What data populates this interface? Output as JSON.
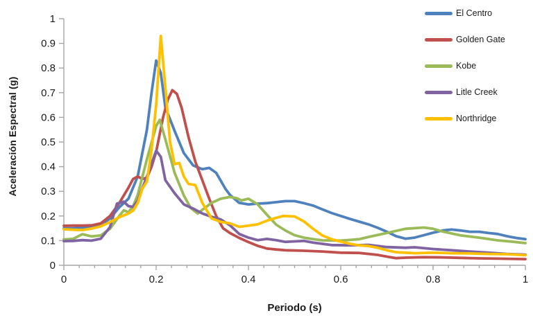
{
  "colors": {
    "axis": "#A6A6A6",
    "text": "#1A1A1A",
    "background": "#FFFFFF"
  },
  "legend": {
    "position": "top-right",
    "items": [
      "El Centro",
      "Golden Gate",
      "Kobe",
      "Litle Creek",
      "Northridge"
    ]
  },
  "chart_data": {
    "type": "line",
    "title": "",
    "xlabel": "Periodo (s)",
    "ylabel": "Aceleración  Espectral (g)",
    "xlim": [
      0,
      1
    ],
    "ylim": [
      0,
      1
    ],
    "grid": false,
    "legend_position": "top-right",
    "xticks": [
      {
        "v": 0,
        "label": "0"
      },
      {
        "v": 0.2,
        "label": "0.2"
      },
      {
        "v": 0.4,
        "label": "0.4"
      },
      {
        "v": 0.6,
        "label": "0.6"
      },
      {
        "v": 0.8,
        "label": "0.8"
      },
      {
        "v": 1,
        "label": "1"
      }
    ],
    "yticks": [
      {
        "v": 0,
        "label": "0"
      },
      {
        "v": 0.1,
        "label": "0.1"
      },
      {
        "v": 0.2,
        "label": "0.2"
      },
      {
        "v": 0.3,
        "label": "0.3"
      },
      {
        "v": 0.4,
        "label": "0.4"
      },
      {
        "v": 0.5,
        "label": "0.5"
      },
      {
        "v": 0.6,
        "label": "0.6"
      },
      {
        "v": 0.7,
        "label": "0.7"
      },
      {
        "v": 0.8,
        "label": "0.8"
      },
      {
        "v": 0.9,
        "label": "0.9"
      },
      {
        "v": 1,
        "label": "1"
      }
    ],
    "x_minor_tick_count": 30,
    "series": [
      {
        "name": "El Centro",
        "color": "#4F81BD",
        "points": [
          [
            0,
            0.15
          ],
          [
            0.02,
            0.15
          ],
          [
            0.04,
            0.152
          ],
          [
            0.06,
            0.155
          ],
          [
            0.08,
            0.163
          ],
          [
            0.1,
            0.19
          ],
          [
            0.12,
            0.235
          ],
          [
            0.14,
            0.27
          ],
          [
            0.16,
            0.36
          ],
          [
            0.18,
            0.55
          ],
          [
            0.19,
            0.7
          ],
          [
            0.2,
            0.83
          ],
          [
            0.21,
            0.78
          ],
          [
            0.22,
            0.64
          ],
          [
            0.24,
            0.545
          ],
          [
            0.26,
            0.455
          ],
          [
            0.28,
            0.405
          ],
          [
            0.3,
            0.39
          ],
          [
            0.315,
            0.395
          ],
          [
            0.33,
            0.375
          ],
          [
            0.35,
            0.31
          ],
          [
            0.36,
            0.285
          ],
          [
            0.38,
            0.253
          ],
          [
            0.4,
            0.247
          ],
          [
            0.42,
            0.25
          ],
          [
            0.44,
            0.252
          ],
          [
            0.46,
            0.256
          ],
          [
            0.48,
            0.26
          ],
          [
            0.5,
            0.26
          ],
          [
            0.52,
            0.252
          ],
          [
            0.54,
            0.242
          ],
          [
            0.56,
            0.227
          ],
          [
            0.58,
            0.212
          ],
          [
            0.6,
            0.2
          ],
          [
            0.62,
            0.188
          ],
          [
            0.64,
            0.177
          ],
          [
            0.66,
            0.166
          ],
          [
            0.68,
            0.152
          ],
          [
            0.7,
            0.136
          ],
          [
            0.72,
            0.118
          ],
          [
            0.74,
            0.108
          ],
          [
            0.76,
            0.112
          ],
          [
            0.78,
            0.122
          ],
          [
            0.8,
            0.132
          ],
          [
            0.82,
            0.141
          ],
          [
            0.84,
            0.145
          ],
          [
            0.86,
            0.141
          ],
          [
            0.88,
            0.136
          ],
          [
            0.9,
            0.136
          ],
          [
            0.92,
            0.131
          ],
          [
            0.94,
            0.127
          ],
          [
            0.96,
            0.118
          ],
          [
            0.98,
            0.111
          ],
          [
            1,
            0.106
          ]
        ]
      },
      {
        "name": "Golden Gate",
        "color": "#C0504D",
        "points": [
          [
            0,
            0.16
          ],
          [
            0.02,
            0.161
          ],
          [
            0.04,
            0.161
          ],
          [
            0.06,
            0.162
          ],
          [
            0.08,
            0.17
          ],
          [
            0.1,
            0.2
          ],
          [
            0.12,
            0.252
          ],
          [
            0.14,
            0.315
          ],
          [
            0.15,
            0.35
          ],
          [
            0.16,
            0.36
          ],
          [
            0.17,
            0.35
          ],
          [
            0.18,
            0.355
          ],
          [
            0.19,
            0.4
          ],
          [
            0.2,
            0.46
          ],
          [
            0.215,
            0.6
          ],
          [
            0.225,
            0.67
          ],
          [
            0.235,
            0.71
          ],
          [
            0.245,
            0.695
          ],
          [
            0.255,
            0.64
          ],
          [
            0.27,
            0.52
          ],
          [
            0.285,
            0.42
          ],
          [
            0.3,
            0.345
          ],
          [
            0.315,
            0.27
          ],
          [
            0.33,
            0.2
          ],
          [
            0.345,
            0.15
          ],
          [
            0.36,
            0.131
          ],
          [
            0.38,
            0.111
          ],
          [
            0.4,
            0.094
          ],
          [
            0.42,
            0.079
          ],
          [
            0.44,
            0.068
          ],
          [
            0.46,
            0.064
          ],
          [
            0.48,
            0.061
          ],
          [
            0.52,
            0.059
          ],
          [
            0.56,
            0.056
          ],
          [
            0.6,
            0.051
          ],
          [
            0.64,
            0.05
          ],
          [
            0.68,
            0.042
          ],
          [
            0.7,
            0.035
          ],
          [
            0.72,
            0.029
          ],
          [
            0.74,
            0.031
          ],
          [
            0.78,
            0.033
          ],
          [
            0.82,
            0.032
          ],
          [
            0.86,
            0.03
          ],
          [
            0.9,
            0.028
          ],
          [
            0.94,
            0.027
          ],
          [
            1,
            0.025
          ]
        ]
      },
      {
        "name": "Kobe",
        "color": "#9BBB59",
        "points": [
          [
            0,
            0.105
          ],
          [
            0.02,
            0.107
          ],
          [
            0.04,
            0.126
          ],
          [
            0.05,
            0.122
          ],
          [
            0.06,
            0.117
          ],
          [
            0.08,
            0.121
          ],
          [
            0.1,
            0.148
          ],
          [
            0.12,
            0.2
          ],
          [
            0.13,
            0.223
          ],
          [
            0.14,
            0.215
          ],
          [
            0.15,
            0.24
          ],
          [
            0.16,
            0.285
          ],
          [
            0.18,
            0.43
          ],
          [
            0.2,
            0.565
          ],
          [
            0.208,
            0.59
          ],
          [
            0.22,
            0.51
          ],
          [
            0.24,
            0.375
          ],
          [
            0.26,
            0.283
          ],
          [
            0.275,
            0.232
          ],
          [
            0.29,
            0.21
          ],
          [
            0.3,
            0.225
          ],
          [
            0.32,
            0.253
          ],
          [
            0.34,
            0.27
          ],
          [
            0.36,
            0.277
          ],
          [
            0.375,
            0.272
          ],
          [
            0.385,
            0.263
          ],
          [
            0.4,
            0.27
          ],
          [
            0.42,
            0.247
          ],
          [
            0.44,
            0.205
          ],
          [
            0.46,
            0.165
          ],
          [
            0.48,
            0.141
          ],
          [
            0.5,
            0.122
          ],
          [
            0.52,
            0.112
          ],
          [
            0.54,
            0.106
          ],
          [
            0.56,
            0.101
          ],
          [
            0.6,
            0.1
          ],
          [
            0.64,
            0.106
          ],
          [
            0.66,
            0.115
          ],
          [
            0.7,
            0.131
          ],
          [
            0.74,
            0.148
          ],
          [
            0.78,
            0.153
          ],
          [
            0.8,
            0.148
          ],
          [
            0.82,
            0.137
          ],
          [
            0.86,
            0.121
          ],
          [
            0.9,
            0.112
          ],
          [
            0.94,
            0.101
          ],
          [
            0.97,
            0.096
          ],
          [
            1,
            0.09
          ]
        ]
      },
      {
        "name": "Litle Creek",
        "color": "#8064A2",
        "points": [
          [
            0,
            0.098
          ],
          [
            0.02,
            0.099
          ],
          [
            0.04,
            0.102
          ],
          [
            0.06,
            0.1
          ],
          [
            0.08,
            0.108
          ],
          [
            0.1,
            0.155
          ],
          [
            0.115,
            0.25
          ],
          [
            0.13,
            0.258
          ],
          [
            0.14,
            0.24
          ],
          [
            0.15,
            0.237
          ],
          [
            0.16,
            0.262
          ],
          [
            0.18,
            0.36
          ],
          [
            0.2,
            0.465
          ],
          [
            0.21,
            0.44
          ],
          [
            0.22,
            0.345
          ],
          [
            0.24,
            0.292
          ],
          [
            0.26,
            0.247
          ],
          [
            0.28,
            0.23
          ],
          [
            0.3,
            0.21
          ],
          [
            0.32,
            0.197
          ],
          [
            0.34,
            0.186
          ],
          [
            0.36,
            0.162
          ],
          [
            0.38,
            0.127
          ],
          [
            0.4,
            0.112
          ],
          [
            0.42,
            0.102
          ],
          [
            0.44,
            0.107
          ],
          [
            0.46,
            0.102
          ],
          [
            0.48,
            0.095
          ],
          [
            0.5,
            0.097
          ],
          [
            0.52,
            0.099
          ],
          [
            0.54,
            0.092
          ],
          [
            0.58,
            0.082
          ],
          [
            0.62,
            0.081
          ],
          [
            0.66,
            0.083
          ],
          [
            0.7,
            0.074
          ],
          [
            0.74,
            0.071
          ],
          [
            0.76,
            0.073
          ],
          [
            0.8,
            0.066
          ],
          [
            0.84,
            0.061
          ],
          [
            0.88,
            0.056
          ],
          [
            0.92,
            0.051
          ],
          [
            0.96,
            0.046
          ],
          [
            1,
            0.043
          ]
        ]
      },
      {
        "name": "Northridge",
        "color": "#FFC000",
        "points": [
          [
            0,
            0.146
          ],
          [
            0.02,
            0.144
          ],
          [
            0.04,
            0.143
          ],
          [
            0.06,
            0.149
          ],
          [
            0.08,
            0.158
          ],
          [
            0.1,
            0.175
          ],
          [
            0.12,
            0.195
          ],
          [
            0.14,
            0.21
          ],
          [
            0.15,
            0.222
          ],
          [
            0.16,
            0.252
          ],
          [
            0.17,
            0.31
          ],
          [
            0.18,
            0.34
          ],
          [
            0.19,
            0.47
          ],
          [
            0.2,
            0.65
          ],
          [
            0.21,
            0.93
          ],
          [
            0.22,
            0.72
          ],
          [
            0.23,
            0.5
          ],
          [
            0.24,
            0.41
          ],
          [
            0.25,
            0.415
          ],
          [
            0.26,
            0.36
          ],
          [
            0.27,
            0.33
          ],
          [
            0.285,
            0.325
          ],
          [
            0.3,
            0.253
          ],
          [
            0.32,
            0.19
          ],
          [
            0.34,
            0.176
          ],
          [
            0.36,
            0.17
          ],
          [
            0.38,
            0.156
          ],
          [
            0.4,
            0.161
          ],
          [
            0.42,
            0.166
          ],
          [
            0.44,
            0.181
          ],
          [
            0.46,
            0.192
          ],
          [
            0.475,
            0.2
          ],
          [
            0.5,
            0.198
          ],
          [
            0.52,
            0.178
          ],
          [
            0.54,
            0.148
          ],
          [
            0.56,
            0.121
          ],
          [
            0.58,
            0.106
          ],
          [
            0.6,
            0.096
          ],
          [
            0.62,
            0.087
          ],
          [
            0.64,
            0.081
          ],
          [
            0.66,
            0.078
          ],
          [
            0.68,
            0.071
          ],
          [
            0.7,
            0.061
          ],
          [
            0.72,
            0.053
          ],
          [
            0.74,
            0.051
          ],
          [
            0.76,
            0.049
          ],
          [
            0.8,
            0.051
          ],
          [
            0.84,
            0.049
          ],
          [
            0.88,
            0.048
          ],
          [
            0.92,
            0.046
          ],
          [
            0.96,
            0.045
          ],
          [
            1,
            0.041
          ]
        ]
      }
    ]
  }
}
